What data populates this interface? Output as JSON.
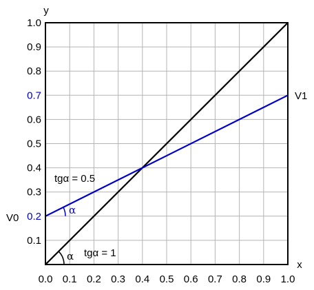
{
  "chart_data": {
    "type": "line",
    "title": "",
    "xlabel": "x",
    "ylabel": "y",
    "xlim": [
      0.0,
      1.0
    ],
    "ylim": [
      0.0,
      1.0
    ],
    "grid": true,
    "x_ticks": [
      "0.0",
      "0.1",
      "0.2",
      "0.3",
      "0.4",
      "0.5",
      "0.6",
      "0.7",
      "0.8",
      "0.9",
      "1.0"
    ],
    "y_ticks": [
      "0.1",
      "0.2",
      "0.3",
      "0.4",
      "0.5",
      "0.6",
      "0.7",
      "0.8",
      "0.9",
      "1.0"
    ],
    "highlight_y_ticks": [
      "0.2",
      "0.7"
    ],
    "series": [
      {
        "color": "#000000",
        "x": [
          0.0,
          1.0
        ],
        "y": [
          0.0,
          1.0
        ]
      },
      {
        "color": "#0000cc",
        "x": [
          0.0,
          1.0
        ],
        "y": [
          0.2,
          0.7
        ]
      }
    ],
    "annotations": {
      "v0": "V0",
      "v1": "V1",
      "alpha_black": "α",
      "alpha_blue": "α",
      "tg_black": "tgα = 1",
      "tg_blue": "tgα = 0.5"
    },
    "colors": {
      "axis": "#000000",
      "grid": "#b4b4b4",
      "highlight": "#0000cc"
    }
  }
}
